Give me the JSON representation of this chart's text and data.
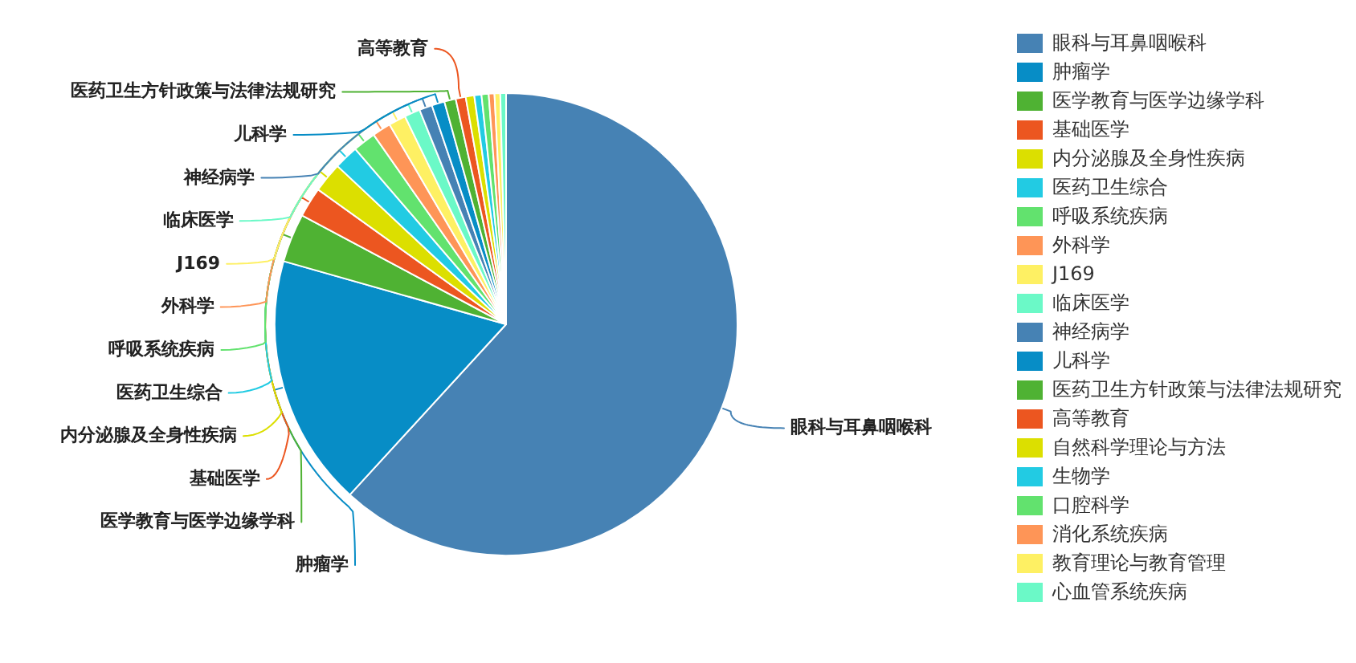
{
  "chart_data": {
    "type": "pie",
    "categories": [
      "眼科与耳鼻咽喉科",
      "肿瘤学",
      "医学教育与医学边缘学科",
      "基础医学",
      "内分泌腺及全身性疾病",
      "医药卫生综合",
      "呼吸系统疾病",
      "外科学",
      "J169",
      "临床医学",
      "神经病学",
      "儿科学",
      "医药卫生方针政策与法律法规研究",
      "高等教育",
      "自然科学理论与方法",
      "生物学",
      "口腔科学",
      "消化系统疾病",
      "教育理论与教育管理",
      "心血管系统疾病"
    ],
    "values": [
      61.8,
      17.6,
      3.4,
      2.1,
      2.1,
      1.7,
      1.6,
      1.3,
      1.2,
      1.1,
      0.9,
      0.9,
      0.8,
      0.7,
      0.6,
      0.5,
      0.5,
      0.4,
      0.4,
      0.4
    ],
    "colors": [
      "#4682b4",
      "#078dc6",
      "#4fb233",
      "#ec5620",
      "#dcdf00",
      "#22cbe3",
      "#62e26e",
      "#fe9557",
      "#fef063",
      "#6bf9c7",
      "#4682b4",
      "#078dc6",
      "#4fb233",
      "#ec5620",
      "#dcdf00",
      "#22cbe3",
      "#62e26e",
      "#fe9557",
      "#fef063",
      "#6bf9c7"
    ],
    "legend": "right"
  }
}
